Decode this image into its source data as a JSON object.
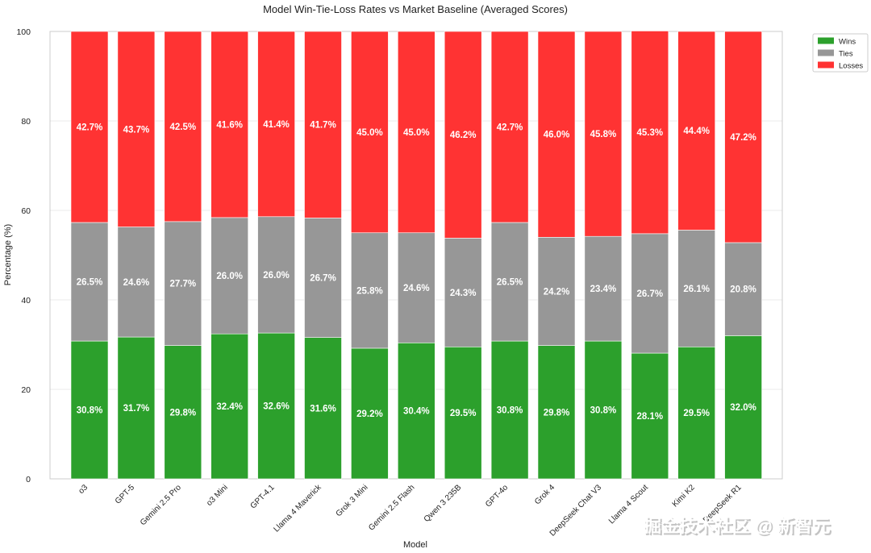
{
  "chart_data": {
    "type": "bar",
    "stacked": true,
    "title": "Model Win-Tie-Loss Rates vs Market Baseline (Averaged Scores)",
    "xlabel": "Model",
    "ylabel": "Percentage (%)",
    "ylim": [
      0,
      100
    ],
    "yticks": [
      "0",
      "20",
      "40",
      "60",
      "80",
      "100"
    ],
    "grid": true,
    "legend_position": "top-right",
    "categories": [
      "o3",
      "GPT-5",
      "Gemini 2.5 Pro",
      "o3 Mini",
      "GPT-4.1",
      "Llama 4 Maverick",
      "Grok 3 Mini",
      "Gemini 2.5 Flash",
      "Qwen 3 235B",
      "GPT-4o",
      "Grok 4",
      "DeepSeek Chat V3",
      "Llama 4 Scout",
      "Kimi K2",
      "DeepSeek R1"
    ],
    "series": [
      {
        "name": "Wins",
        "color": "#2ca02c",
        "values": [
          30.8,
          31.7,
          29.8,
          32.4,
          32.6,
          31.6,
          29.2,
          30.4,
          29.5,
          30.8,
          29.8,
          30.8,
          28.1,
          29.5,
          32.0
        ],
        "labels": [
          "30.8%",
          "31.7%",
          "29.8%",
          "32.4%",
          "32.6%",
          "31.6%",
          "29.2%",
          "30.4%",
          "29.5%",
          "30.8%",
          "29.8%",
          "30.8%",
          "28.1%",
          "29.5%",
          "32.0%"
        ]
      },
      {
        "name": "Ties",
        "color": "#979797",
        "values": [
          26.5,
          24.6,
          27.7,
          26.0,
          26.0,
          26.7,
          25.8,
          24.6,
          24.3,
          26.5,
          24.2,
          23.4,
          26.7,
          26.1,
          20.8
        ],
        "labels": [
          "26.5%",
          "24.6%",
          "27.7%",
          "26.0%",
          "26.0%",
          "26.7%",
          "25.8%",
          "24.6%",
          "24.3%",
          "26.5%",
          "24.2%",
          "23.4%",
          "26.7%",
          "26.1%",
          "20.8%"
        ]
      },
      {
        "name": "Losses",
        "color": "#ff3333",
        "values": [
          42.7,
          43.7,
          42.5,
          41.6,
          41.4,
          41.7,
          45.0,
          45.0,
          46.2,
          42.7,
          46.0,
          45.8,
          45.3,
          44.4,
          47.2
        ],
        "labels": [
          "42.7%",
          "43.7%",
          "42.5%",
          "41.6%",
          "41.4%",
          "41.7%",
          "45.0%",
          "45.0%",
          "46.2%",
          "42.7%",
          "46.0%",
          "45.8%",
          "45.3%",
          "44.4%",
          "47.2%"
        ]
      }
    ]
  },
  "watermark": "掘金技术社区 @ 新智元"
}
